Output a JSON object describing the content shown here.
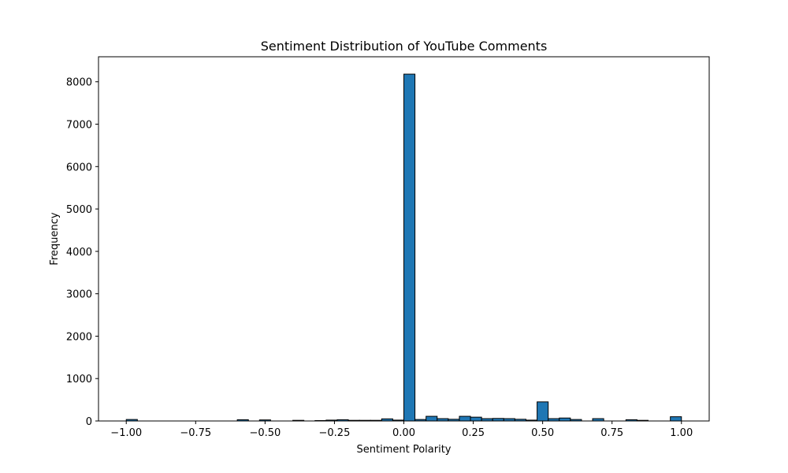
{
  "chart_data": {
    "type": "bar",
    "subtype": "histogram",
    "title": "Sentiment Distribution of YouTube Comments",
    "xlabel": "Sentiment Polarity",
    "ylabel": "Frequency",
    "xlim": [
      -1.1,
      1.1
    ],
    "ylim": [
      0,
      8590
    ],
    "bin_range": [
      -1.0,
      1.0
    ],
    "bin_count": 50,
    "bar_color": "#1f77b4",
    "edge_color": "#000000",
    "grid": false,
    "x_ticks": [
      -1.0,
      -0.75,
      -0.5,
      -0.25,
      0.0,
      0.25,
      0.5,
      0.75,
      1.0
    ],
    "x_tick_labels": [
      "−1.00",
      "−0.75",
      "−0.50",
      "−0.25",
      "0.00",
      "0.25",
      "0.50",
      "0.75",
      "1.00"
    ],
    "y_ticks": [
      0,
      1000,
      2000,
      3000,
      4000,
      5000,
      6000,
      7000,
      8000
    ],
    "y_tick_labels": [
      "0",
      "1000",
      "2000",
      "3000",
      "4000",
      "5000",
      "6000",
      "7000",
      "8000"
    ],
    "values": [
      35,
      0,
      0,
      0,
      0,
      0,
      0,
      0,
      0,
      0,
      30,
      0,
      25,
      0,
      0,
      15,
      0,
      10,
      20,
      30,
      15,
      15,
      15,
      50,
      20,
      8180,
      35,
      110,
      55,
      40,
      110,
      90,
      55,
      60,
      55,
      40,
      20,
      450,
      55,
      70,
      35,
      0,
      55,
      0,
      0,
      30,
      15,
      0,
      0,
      100
    ]
  }
}
